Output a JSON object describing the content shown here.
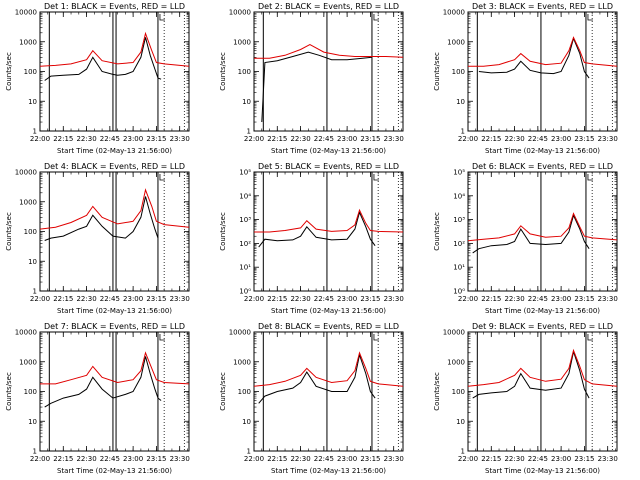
{
  "chart_data": [
    {
      "type": "line",
      "title": "Det 1: BLACK = Events, RED = LLD",
      "ylabel": "Counts/sec",
      "xlabel": "Start Time (02-May-13 21:56:00)",
      "yscale": "log",
      "ylim": [
        1,
        10000
      ],
      "xlim": [
        "22:00",
        "23:36"
      ],
      "ytick_labels": [
        "1",
        "10",
        "100",
        "1000",
        "10000"
      ],
      "xtick_labels": [
        "22:00",
        "22:15",
        "22:30",
        "22:45",
        "23:00",
        "23:15",
        "23:30"
      ],
      "markers": {
        "solid": [
          "22:06",
          "22:47",
          "22:49",
          "23:16"
        ],
        "dotted": [
          "23:20",
          "23:33"
        ]
      },
      "series": [
        {
          "color": "#000000",
          "x": [
            "22:03",
            "22:07",
            "22:15",
            "22:25",
            "22:30",
            "22:34",
            "22:40",
            "22:47",
            "22:50",
            "22:55",
            "23:00",
            "23:05",
            "23:08",
            "23:11",
            "23:14",
            "23:16",
            "23:18"
          ],
          "values": [
            50,
            70,
            75,
            80,
            120,
            300,
            100,
            80,
            75,
            80,
            100,
            300,
            1400,
            350,
            120,
            60,
            55
          ]
        },
        {
          "color": "#e00000",
          "x": [
            "22:00",
            "22:10",
            "22:20",
            "22:30",
            "22:34",
            "22:40",
            "22:50",
            "23:00",
            "23:05",
            "23:08",
            "23:12",
            "23:15",
            "23:20",
            "23:36"
          ],
          "values": [
            150,
            160,
            180,
            250,
            500,
            230,
            180,
            200,
            450,
            1900,
            500,
            200,
            180,
            150
          ]
        }
      ]
    },
    {
      "type": "line",
      "title": "Det 2: BLACK = Events, RED = LLD",
      "ylabel": "Counts/sec",
      "xlabel": "Start Time (02-May-13 21:56:00)",
      "yscale": "log",
      "ylim": [
        1,
        10000
      ],
      "xlim": [
        "22:00",
        "23:36"
      ],
      "ytick_labels": [
        "1",
        "10",
        "100",
        "1000",
        "10000"
      ],
      "xtick_labels": [
        "22:00",
        "22:15",
        "22:30",
        "22:45",
        "23:00",
        "23:15",
        "23:30"
      ],
      "markers": {
        "solid": [
          "22:06",
          "22:47",
          "23:16"
        ],
        "dotted": [
          "23:20",
          "23:33"
        ]
      },
      "series": [
        {
          "color": "#000000",
          "x": [
            "22:05",
            "22:07",
            "22:15",
            "22:25",
            "22:35",
            "22:42",
            "22:50",
            "23:00",
            "23:10",
            "23:16"
          ],
          "values": [
            2,
            200,
            230,
            320,
            450,
            350,
            250,
            250,
            280,
            300
          ]
        },
        {
          "color": "#e00000",
          "x": [
            "22:00",
            "22:10",
            "22:20",
            "22:30",
            "22:36",
            "22:45",
            "22:55",
            "23:05",
            "23:15",
            "23:25",
            "23:36"
          ],
          "values": [
            280,
            280,
            350,
            550,
            800,
            450,
            350,
            320,
            320,
            320,
            300
          ]
        }
      ]
    },
    {
      "type": "line",
      "title": "Det 3: BLACK = Events, RED = LLD",
      "ylabel": "Counts/sec",
      "xlabel": "Start Time (02-May-13 21:56:00)",
      "yscale": "log",
      "ylim": [
        1,
        10000
      ],
      "xlim": [
        "22:00",
        "23:36"
      ],
      "ytick_labels": [
        "1",
        "10",
        "100",
        "1000",
        "10000"
      ],
      "xtick_labels": [
        "22:00",
        "22:15",
        "22:30",
        "22:45",
        "23:00",
        "23:15",
        "23:30"
      ],
      "markers": {
        "solid": [
          "22:06",
          "22:47",
          "23:16"
        ],
        "dotted": [
          "23:20",
          "23:33"
        ]
      },
      "series": [
        {
          "color": "#000000",
          "x": [
            "22:07",
            "22:15",
            "22:25",
            "22:30",
            "22:34",
            "22:40",
            "22:47",
            "22:55",
            "23:00",
            "23:05",
            "23:08",
            "23:12",
            "23:15",
            "23:18"
          ],
          "values": [
            100,
            90,
            95,
            120,
            220,
            110,
            90,
            85,
            100,
            350,
            1300,
            400,
            100,
            60
          ]
        },
        {
          "color": "#e00000",
          "x": [
            "22:00",
            "22:10",
            "22:20",
            "22:30",
            "22:34",
            "22:40",
            "22:50",
            "23:00",
            "23:05",
            "23:08",
            "23:12",
            "23:15",
            "23:20",
            "23:36"
          ],
          "values": [
            150,
            150,
            170,
            250,
            400,
            220,
            170,
            190,
            500,
            1400,
            500,
            200,
            180,
            150
          ]
        }
      ]
    },
    {
      "type": "line",
      "title": "Det 4: BLACK = Events, RED = LLD",
      "ylabel": "Counts/sec",
      "xlabel": "Start Time (02-May-13 21:56:00)",
      "yscale": "log",
      "ylim": [
        1,
        10000
      ],
      "xlim": [
        "22:00",
        "23:36"
      ],
      "ytick_labels": [
        "1",
        "10",
        "100",
        "1000",
        "10000"
      ],
      "xtick_labels": [
        "22:00",
        "22:15",
        "22:30",
        "22:45",
        "23:00",
        "23:15",
        "23:30"
      ],
      "markers": {
        "solid": [
          "22:06",
          "22:47",
          "22:49",
          "23:16"
        ],
        "dotted": [
          "23:20",
          "23:33"
        ]
      },
      "series": [
        {
          "color": "#000000",
          "x": [
            "22:03",
            "22:07",
            "22:15",
            "22:25",
            "22:30",
            "22:34",
            "22:40",
            "22:47",
            "22:55",
            "23:00",
            "23:05",
            "23:08",
            "23:11",
            "23:14",
            "23:16"
          ],
          "values": [
            50,
            60,
            70,
            120,
            150,
            350,
            150,
            70,
            60,
            100,
            300,
            1500,
            400,
            120,
            60
          ]
        },
        {
          "color": "#e00000",
          "x": [
            "22:00",
            "22:10",
            "22:20",
            "22:30",
            "22:34",
            "22:40",
            "22:50",
            "23:00",
            "23:05",
            "23:08",
            "23:12",
            "23:15",
            "23:20",
            "23:36"
          ],
          "values": [
            120,
            140,
            200,
            350,
            700,
            300,
            180,
            220,
            500,
            2500,
            700,
            220,
            170,
            140
          ]
        }
      ]
    },
    {
      "type": "line",
      "title": "Det 5: BLACK = Events, RED = LLD",
      "ylabel": "Counts/sec",
      "xlabel": "Start Time (02-May-13 21:56:00)",
      "yscale": "log",
      "ylim": [
        1,
        100000
      ],
      "xlim": [
        "22:00",
        "23:36"
      ],
      "ytick_labels": [
        "10⁰",
        "10¹",
        "10²",
        "10³",
        "10⁴",
        "10⁵"
      ],
      "xtick_labels": [
        "22:00",
        "22:15",
        "22:30",
        "22:45",
        "23:00",
        "23:15",
        "23:30"
      ],
      "markers": {
        "solid": [
          "22:06",
          "22:47",
          "23:16"
        ],
        "dotted": [
          "23:20",
          "23:33"
        ]
      },
      "series": [
        {
          "color": "#000000",
          "x": [
            "22:03",
            "22:07",
            "22:15",
            "22:25",
            "22:30",
            "22:34",
            "22:40",
            "22:50",
            "23:00",
            "23:05",
            "23:08",
            "23:12",
            "23:15",
            "23:18"
          ],
          "values": [
            70,
            150,
            130,
            140,
            200,
            500,
            180,
            140,
            150,
            400,
            2000,
            500,
            150,
            80
          ]
        },
        {
          "color": "#e00000",
          "x": [
            "22:00",
            "22:10",
            "22:20",
            "22:30",
            "22:34",
            "22:40",
            "22:50",
            "23:00",
            "23:05",
            "23:08",
            "23:12",
            "23:15",
            "23:20",
            "23:36"
          ],
          "values": [
            300,
            300,
            350,
            450,
            900,
            400,
            320,
            350,
            600,
            2500,
            700,
            350,
            320,
            300
          ]
        }
      ]
    },
    {
      "type": "line",
      "title": "Det 6: BLACK = Events, RED = LLD",
      "ylabel": "Counts/sec",
      "xlabel": "Start Time (02-May-13 21:56:00)",
      "yscale": "log",
      "ylim": [
        1,
        100000
      ],
      "xlim": [
        "22:00",
        "23:36"
      ],
      "ytick_labels": [
        "10⁰",
        "10¹",
        "10²",
        "10³",
        "10⁴",
        "10⁵"
      ],
      "xtick_labels": [
        "22:00",
        "22:15",
        "22:30",
        "22:45",
        "23:00",
        "23:15",
        "23:30"
      ],
      "markers": {
        "solid": [
          "22:06",
          "22:47",
          "23:16"
        ],
        "dotted": [
          "23:20",
          "23:33"
        ]
      },
      "series": [
        {
          "color": "#000000",
          "x": [
            "22:03",
            "22:07",
            "22:15",
            "22:25",
            "22:30",
            "22:34",
            "22:40",
            "22:50",
            "23:00",
            "23:05",
            "23:08",
            "23:12",
            "23:15",
            "23:18"
          ],
          "values": [
            40,
            60,
            80,
            90,
            120,
            400,
            100,
            90,
            100,
            300,
            1500,
            400,
            120,
            60
          ]
        },
        {
          "color": "#e00000",
          "x": [
            "22:00",
            "22:10",
            "22:20",
            "22:30",
            "22:34",
            "22:40",
            "22:50",
            "23:00",
            "23:05",
            "23:08",
            "23:12",
            "23:15",
            "23:20",
            "23:36"
          ],
          "values": [
            130,
            150,
            170,
            250,
            550,
            250,
            180,
            200,
            450,
            1800,
            500,
            200,
            170,
            140
          ]
        }
      ]
    },
    {
      "type": "line",
      "title": "Det 7: BLACK = Events, RED = LLD",
      "ylabel": "Counts/sec",
      "xlabel": "Start Time (02-May-13 21:56:00)",
      "yscale": "log",
      "ylim": [
        1,
        10000
      ],
      "xlim": [
        "22:00",
        "23:36"
      ],
      "ytick_labels": [
        "1",
        "10",
        "100",
        "1000",
        "10000"
      ],
      "xtick_labels": [
        "22:00",
        "22:15",
        "22:30",
        "22:45",
        "23:00",
        "23:15",
        "23:30"
      ],
      "markers": {
        "solid": [
          "22:06",
          "22:47",
          "22:49",
          "23:16"
        ],
        "dotted": [
          "23:20",
          "23:33"
        ]
      },
      "series": [
        {
          "color": "#000000",
          "x": [
            "22:03",
            "22:07",
            "22:15",
            "22:25",
            "22:30",
            "22:34",
            "22:40",
            "22:47",
            "22:55",
            "23:00",
            "23:05",
            "23:08",
            "23:11",
            "23:14",
            "23:16",
            "23:18"
          ],
          "values": [
            30,
            40,
            60,
            80,
            120,
            300,
            120,
            60,
            80,
            100,
            300,
            1500,
            400,
            120,
            60,
            50
          ]
        },
        {
          "color": "#e00000",
          "x": [
            "22:00",
            "22:10",
            "22:20",
            "22:30",
            "22:34",
            "22:40",
            "22:50",
            "23:00",
            "23:05",
            "23:08",
            "23:12",
            "23:15",
            "23:20",
            "23:36"
          ],
          "values": [
            180,
            180,
            250,
            350,
            700,
            300,
            200,
            250,
            500,
            2000,
            600,
            250,
            200,
            180
          ]
        }
      ]
    },
    {
      "type": "line",
      "title": "Det 8: BLACK = Events, RED = LLD",
      "ylabel": "Counts/sec",
      "xlabel": "Start Time (02-May-13 21:56:00)",
      "yscale": "log",
      "ylim": [
        1,
        10000
      ],
      "xlim": [
        "22:00",
        "23:36"
      ],
      "ytick_labels": [
        "1",
        "10",
        "100",
        "1000",
        "10000"
      ],
      "xtick_labels": [
        "22:00",
        "22:15",
        "22:30",
        "22:45",
        "23:00",
        "23:15",
        "23:30"
      ],
      "markers": {
        "solid": [
          "22:06",
          "22:47",
          "23:16"
        ],
        "dotted": [
          "23:20",
          "23:33"
        ]
      },
      "series": [
        {
          "color": "#000000",
          "x": [
            "22:03",
            "22:07",
            "22:15",
            "22:25",
            "22:30",
            "22:34",
            "22:40",
            "22:50",
            "23:00",
            "23:05",
            "23:08",
            "23:12",
            "23:15",
            "23:18"
          ],
          "values": [
            40,
            70,
            100,
            130,
            200,
            450,
            150,
            100,
            100,
            300,
            1700,
            400,
            100,
            60
          ]
        },
        {
          "color": "#e00000",
          "x": [
            "22:00",
            "22:10",
            "22:20",
            "22:30",
            "22:34",
            "22:40",
            "22:50",
            "23:00",
            "23:05",
            "23:08",
            "23:12",
            "23:15",
            "23:20",
            "23:36"
          ],
          "values": [
            150,
            170,
            220,
            350,
            600,
            300,
            200,
            230,
            500,
            2000,
            600,
            220,
            180,
            150
          ]
        }
      ]
    },
    {
      "type": "line",
      "title": "Det 9: BLACK = Events, RED = LLD",
      "ylabel": "Counts/sec",
      "xlabel": "Start Time (02-May-13 21:56:00)",
      "yscale": "log",
      "ylim": [
        1,
        10000
      ],
      "xlim": [
        "22:00",
        "23:36"
      ],
      "ytick_labels": [
        "1",
        "10",
        "100",
        "1000",
        "10000"
      ],
      "xtick_labels": [
        "22:00",
        "22:15",
        "22:30",
        "22:45",
        "23:00",
        "23:15",
        "23:30"
      ],
      "markers": {
        "solid": [
          "22:06",
          "22:47",
          "23:16"
        ],
        "dotted": [
          "23:20",
          "23:33"
        ]
      },
      "series": [
        {
          "color": "#000000",
          "x": [
            "22:03",
            "22:07",
            "22:15",
            "22:25",
            "22:30",
            "22:34",
            "22:40",
            "22:50",
            "23:00",
            "23:05",
            "23:08",
            "23:12",
            "23:15",
            "23:18"
          ],
          "values": [
            60,
            80,
            90,
            100,
            150,
            400,
            130,
            110,
            130,
            400,
            2200,
            500,
            120,
            60
          ]
        },
        {
          "color": "#e00000",
          "x": [
            "22:00",
            "22:10",
            "22:20",
            "22:30",
            "22:34",
            "22:40",
            "22:50",
            "23:00",
            "23:05",
            "23:08",
            "23:12",
            "23:15",
            "23:20",
            "23:36"
          ],
          "values": [
            150,
            170,
            200,
            350,
            600,
            300,
            220,
            260,
            600,
            2400,
            700,
            250,
            180,
            150
          ]
        }
      ]
    }
  ]
}
